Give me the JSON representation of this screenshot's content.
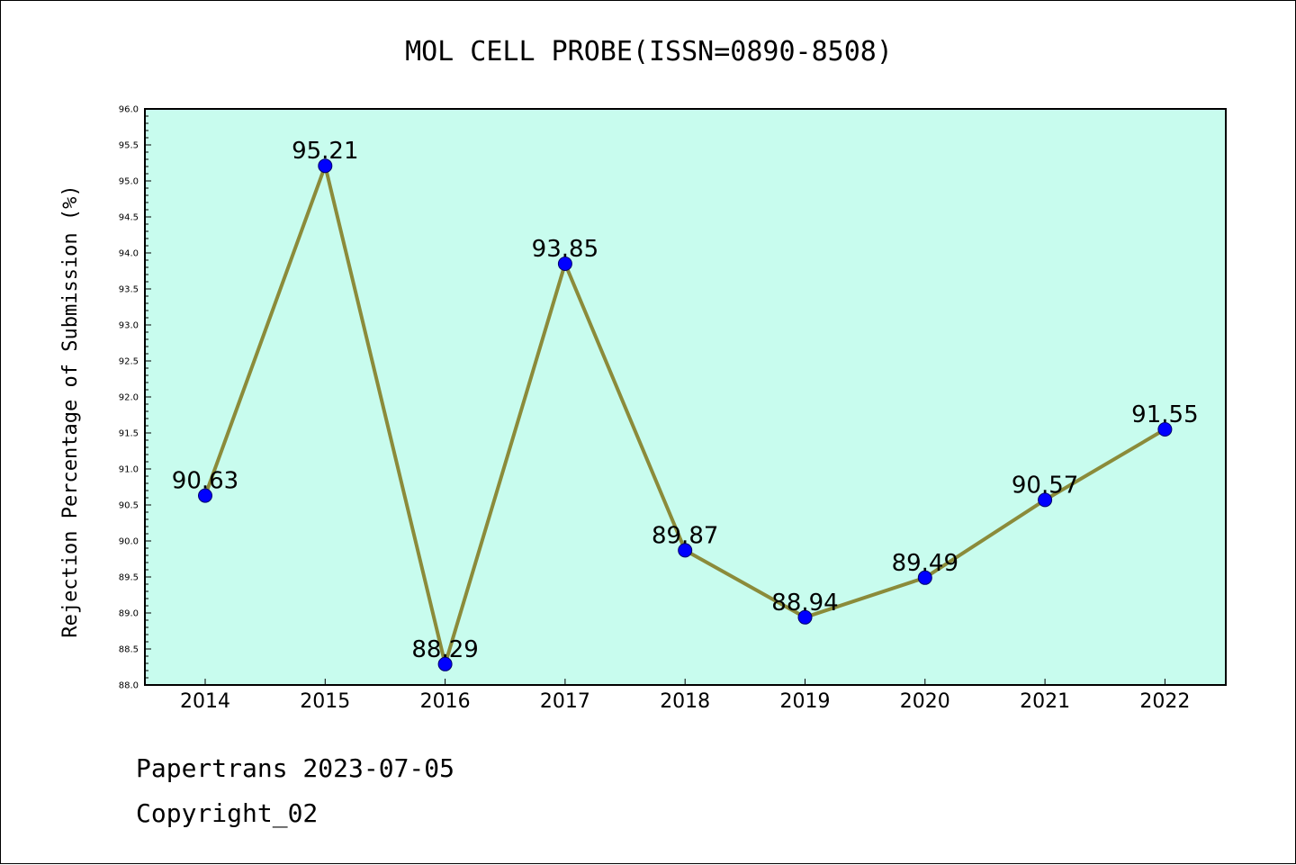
{
  "chart_data": {
    "type": "line",
    "title": "MOL CELL PROBE(ISSN=0890-8508)",
    "xlabel": "",
    "ylabel": "Rejection Percentage of Submission (%)",
    "categories": [
      "2014",
      "2015",
      "2016",
      "2017",
      "2018",
      "2019",
      "2020",
      "2021",
      "2022"
    ],
    "series": [
      {
        "values": [
          90.63,
          95.21,
          88.29,
          93.85,
          89.87,
          88.94,
          89.49,
          90.57,
          91.55
        ]
      }
    ],
    "data_labels": [
      "90.63",
      "95.21",
      "88.29",
      "93.85",
      "89.87",
      "88.94",
      "89.49",
      "90.57",
      "91.55"
    ],
    "ylim": [
      88.0,
      96.0
    ],
    "yticks": [
      "88.0",
      "88.5",
      "89.0",
      "89.5",
      "90.0",
      "90.5",
      "91.0",
      "91.5",
      "92.0",
      "92.5",
      "93.0",
      "93.5",
      "94.0",
      "94.5",
      "95.0",
      "95.5",
      "96.0"
    ],
    "grid": false,
    "colors": {
      "plot_background": "#c8fcee",
      "line": "#8b8b3a",
      "marker": "#0000ff"
    }
  },
  "footer": {
    "line1": "Papertrans 2023-07-05",
    "line2": "Copyright_02"
  }
}
